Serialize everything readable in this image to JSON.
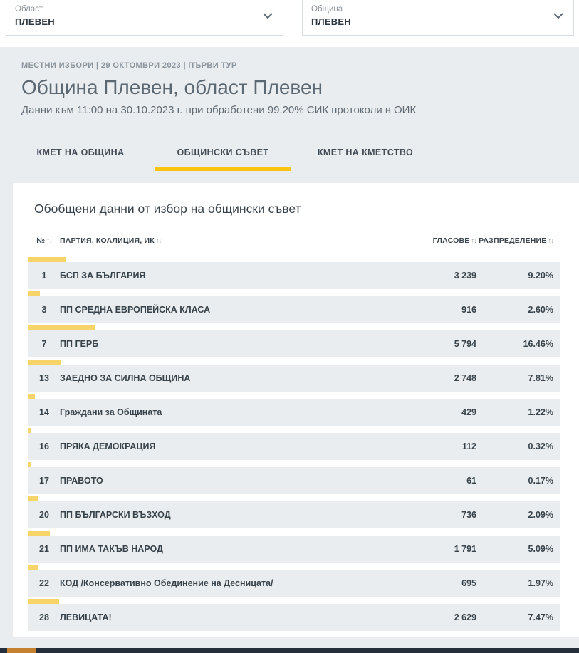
{
  "filters": {
    "oblast": {
      "label": "Област",
      "value": "ПЛЕВЕН"
    },
    "obshtina": {
      "label": "Община",
      "value": "ПЛЕВЕН"
    }
  },
  "header": {
    "meta": "МЕСТНИ ИЗБОРИ | 29 ОКТОМВРИ 2023 | ПЪРВИ ТУР",
    "title": "Община Плевен, област Плевен",
    "subtitle": "Данни към 11:00 на 30.10.2023 г. при обработени 99.20% СИК протоколи в ОИК"
  },
  "tabs": [
    {
      "label": "КМЕТ НА ОБЩИНА",
      "active": false
    },
    {
      "label": "ОБЩИНСКИ СЪВЕТ",
      "active": true
    },
    {
      "label": "КМЕТ НА КМЕТСТВО",
      "active": false
    }
  ],
  "section": {
    "title": "Обобщени данни от избор на общински съвет"
  },
  "table": {
    "sort_icon": "↑↓",
    "columns": {
      "num": "№",
      "party": "ПАРТИЯ, КОАЛИЦИЯ, ИК",
      "votes": "ГЛАСОВЕ",
      "share": "РАЗПРЕДЕЛЕНИЕ"
    },
    "rows": [
      {
        "num": "1",
        "party": "БСП ЗА БЪЛГАРИЯ",
        "votes": "3 239",
        "share": "9.20%",
        "share_value": 9.2
      },
      {
        "num": "3",
        "party": "ПП СРЕДНА ЕВРОПЕЙСКА КЛАСА",
        "votes": "916",
        "share": "2.60%",
        "share_value": 2.6
      },
      {
        "num": "7",
        "party": "ПП ГЕРБ",
        "votes": "5 794",
        "share": "16.46%",
        "share_value": 16.46
      },
      {
        "num": "13",
        "party": "ЗАЕДНО ЗА СИЛНА ОБЩИНА",
        "votes": "2 748",
        "share": "7.81%",
        "share_value": 7.81
      },
      {
        "num": "14",
        "party": "Граждани за Общината",
        "votes": "429",
        "share": "1.22%",
        "share_value": 1.22
      },
      {
        "num": "16",
        "party": "ПРЯКА ДЕМОКРАЦИЯ",
        "votes": "112",
        "share": "0.32%",
        "share_value": 0.32
      },
      {
        "num": "17",
        "party": "ПРАВОТО",
        "votes": "61",
        "share": "0.17%",
        "share_value": 0.17
      },
      {
        "num": "20",
        "party": "ПП БЪЛГАРСКИ ВЪЗХОД",
        "votes": "736",
        "share": "2.09%",
        "share_value": 2.09
      },
      {
        "num": "21",
        "party": "ПП ИМА ТАКЪВ НАРОД",
        "votes": "1 791",
        "share": "5.09%",
        "share_value": 5.09
      },
      {
        "num": "22",
        "party": "КОД /Консервативно Обединение на Десницата/",
        "votes": "695",
        "share": "1.97%",
        "share_value": 1.97
      },
      {
        "num": "28",
        "party": "ЛЕВИЦАТА!",
        "votes": "2 629",
        "share": "7.47%",
        "share_value": 7.47
      }
    ]
  },
  "colors": {
    "accent": "#fcc30f",
    "bar": "#f7d469",
    "row_bg": "#e9edef",
    "footer_bg": "#242f3b",
    "footer_accent": "#c5812f"
  }
}
